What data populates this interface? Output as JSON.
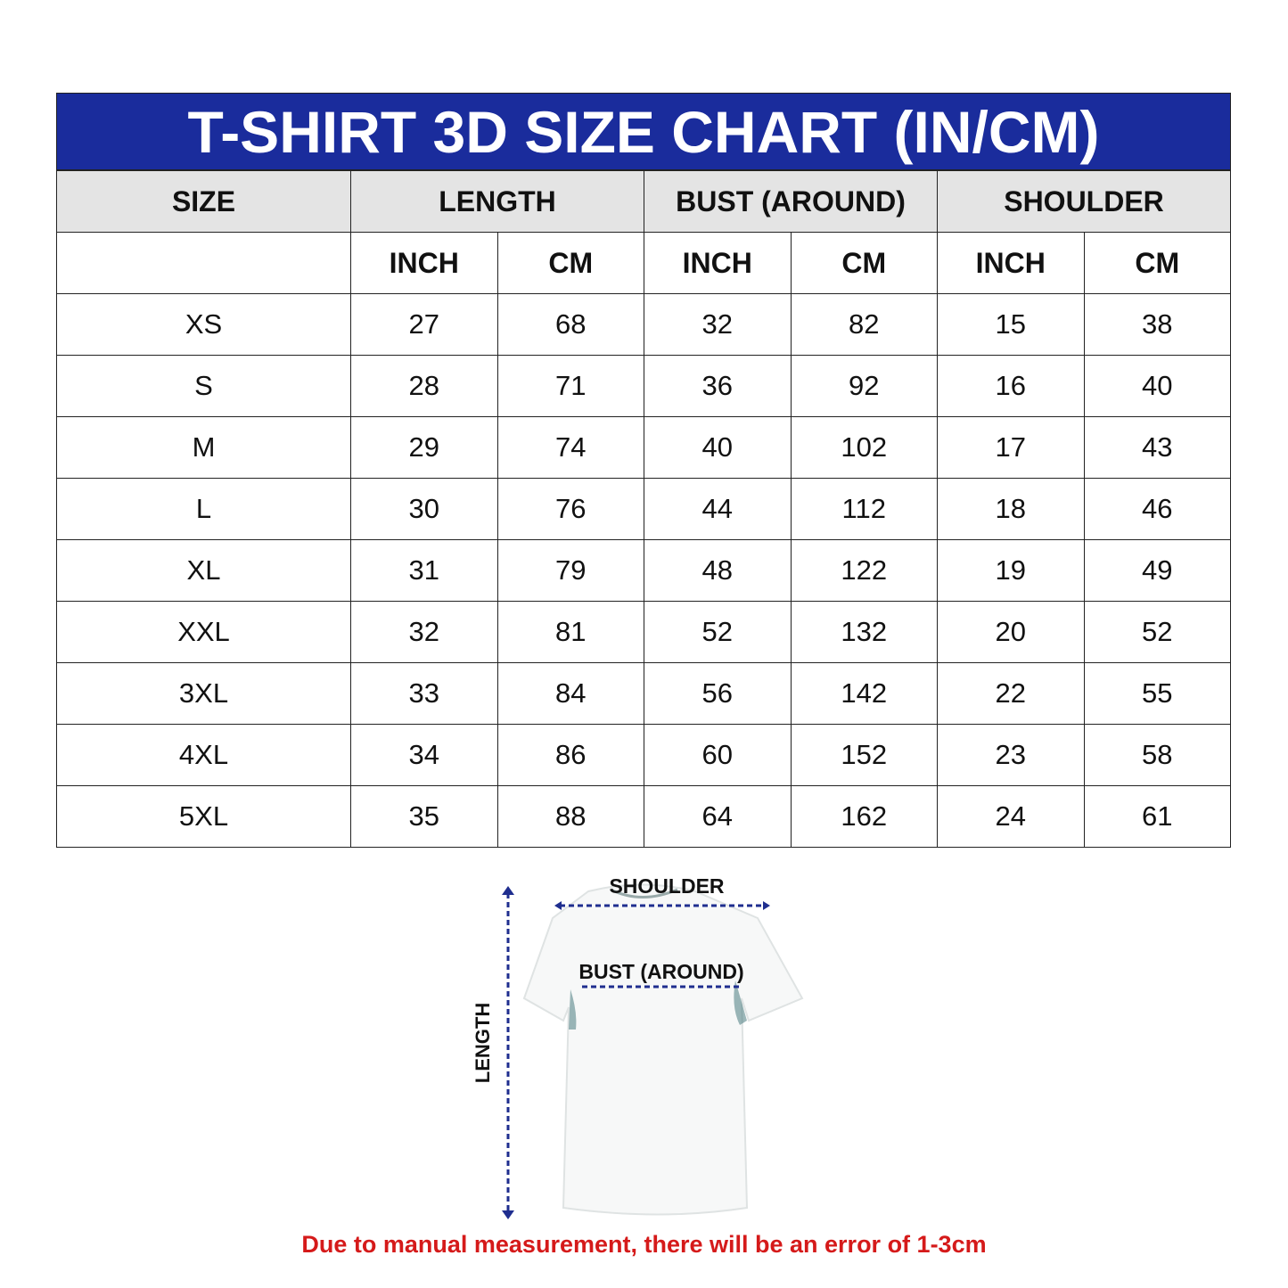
{
  "title": "T-SHIRT 3D SIZE CHART (IN/CM)",
  "colors": {
    "title_bg": "#1a2c9c",
    "header_bg": "#e4e4e4",
    "note": "#d51a1a",
    "arrow": "#1f2e8f"
  },
  "headers": {
    "size": "SIZE",
    "length": "LENGTH",
    "bust": "BUST (AROUND)",
    "shoulder": "SHOULDER"
  },
  "units": [
    "INCH",
    "CM",
    "INCH",
    "CM",
    "INCH",
    "CM"
  ],
  "rows": [
    {
      "size": "XS",
      "values": [
        "27",
        "68",
        "32",
        "82",
        "15",
        "38"
      ]
    },
    {
      "size": "S",
      "values": [
        "28",
        "71",
        "36",
        "92",
        "16",
        "40"
      ]
    },
    {
      "size": "M",
      "values": [
        "29",
        "74",
        "40",
        "102",
        "17",
        "43"
      ]
    },
    {
      "size": "L",
      "values": [
        "30",
        "76",
        "44",
        "112",
        "18",
        "46"
      ]
    },
    {
      "size": "XL",
      "values": [
        "31",
        "79",
        "48",
        "122",
        "19",
        "49"
      ]
    },
    {
      "size": "XXL",
      "values": [
        "32",
        "81",
        "52",
        "132",
        "20",
        "52"
      ]
    },
    {
      "size": "3XL",
      "values": [
        "33",
        "84",
        "56",
        "142",
        "22",
        "55"
      ]
    },
    {
      "size": "4XL",
      "values": [
        "34",
        "86",
        "60",
        "152",
        "23",
        "58"
      ]
    },
    {
      "size": "5XL",
      "values": [
        "35",
        "88",
        "64",
        "162",
        "24",
        "61"
      ]
    }
  ],
  "illustration": {
    "shoulder": "SHOULDER",
    "bust": "BUST (AROUND)",
    "length": "LENGTH"
  },
  "note": "Due to manual measurement, there will be an error of 1-3cm"
}
